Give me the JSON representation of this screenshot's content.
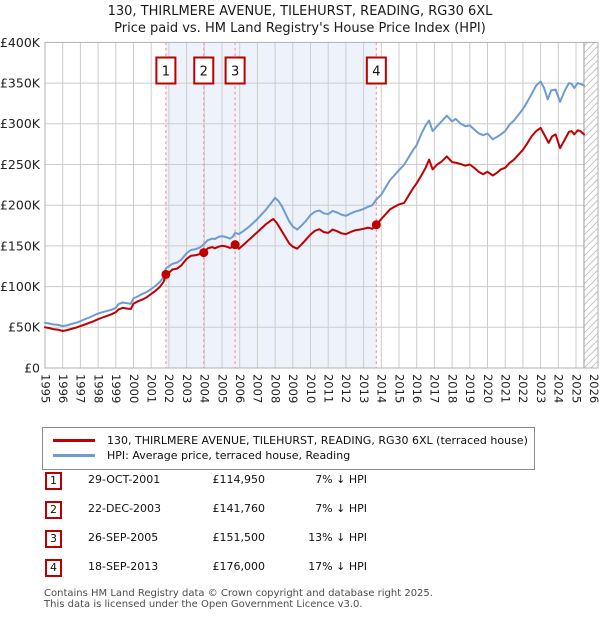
{
  "title": "130, THIRLMERE AVENUE, TILEHURST, READING, RG30 6XL",
  "subtitle": "Price paid vs. HM Land Registry's House Price Index (HPI)",
  "chart_data": {
    "type": "line",
    "title": "130, THIRLMERE AVENUE, TILEHURST, READING, RG30 6XL",
    "subtitle": "Price paid vs. HM Land Registry's House Price Index (HPI)",
    "x_axis": {
      "label": "",
      "range": [
        1995,
        2026.3
      ],
      "ticks": [
        1995,
        1996,
        1997,
        1998,
        1999,
        2000,
        2001,
        2002,
        2003,
        2004,
        2005,
        2006,
        2007,
        2008,
        2009,
        2010,
        2011,
        2012,
        2013,
        2014,
        2015,
        2016,
        2017,
        2018,
        2019,
        2020,
        2021,
        2022,
        2023,
        2024,
        2025,
        2026
      ]
    },
    "y_axis": {
      "label": "",
      "units": "GBP_thousands",
      "range": [
        0,
        400
      ],
      "ticks": [
        0,
        50,
        100,
        150,
        200,
        250,
        300,
        350,
        400
      ],
      "tick_labels": [
        "£0",
        "£50K",
        "£100K",
        "£150K",
        "£200K",
        "£250K",
        "£300K",
        "£350K",
        "£400K"
      ]
    },
    "grid": true,
    "legend_position": "bottom",
    "shaded_period": [
      2001.83,
      2013.72
    ],
    "future_hatch_from": 2025.45,
    "colors": {
      "property_line": "#c00000",
      "hpi_line": "#6e9bd1",
      "grid": "#cccccc",
      "plot_border": "#b0b0b0",
      "sale_dash": "#f59a9a",
      "shade": "#edf2fb",
      "flag_border": "#bb0000",
      "hatch_line": "#c6c6c6",
      "axis_text": "#222222"
    },
    "series": [
      {
        "name": "130, THIRLMERE AVENUE, TILEHURST, READING, RG30 6XL (terraced house)",
        "color": "#c00000",
        "points": [
          [
            1995,
            50
          ],
          [
            1995.25,
            49
          ],
          [
            1995.5,
            47.5
          ],
          [
            1995.75,
            47
          ],
          [
            1996,
            45.5
          ],
          [
            1996.25,
            46.5
          ],
          [
            1996.5,
            48
          ],
          [
            1996.75,
            49.5
          ],
          [
            1997,
            51.5
          ],
          [
            1997.25,
            53.5
          ],
          [
            1997.5,
            55.5
          ],
          [
            1997.75,
            57.5
          ],
          [
            1998,
            60
          ],
          [
            1998.25,
            62
          ],
          [
            1998.5,
            64
          ],
          [
            1998.75,
            66
          ],
          [
            1999,
            68.5
          ],
          [
            1999.15,
            72
          ],
          [
            1999.4,
            74
          ],
          [
            1999.65,
            73
          ],
          [
            1999.85,
            72.5
          ],
          [
            2000,
            79
          ],
          [
            2000.25,
            82
          ],
          [
            2000.5,
            84
          ],
          [
            2000.75,
            87
          ],
          [
            2001,
            91
          ],
          [
            2001.25,
            95
          ],
          [
            2001.5,
            100
          ],
          [
            2001.7,
            106
          ],
          [
            2001.83,
            114.95
          ],
          [
            2002,
            117
          ],
          [
            2002.2,
            121
          ],
          [
            2002.45,
            122
          ],
          [
            2002.7,
            126
          ],
          [
            2003,
            134
          ],
          [
            2003.25,
            138
          ],
          [
            2003.5,
            138.5
          ],
          [
            2003.75,
            140
          ],
          [
            2003.97,
            141.76
          ],
          [
            2004.2,
            147
          ],
          [
            2004.45,
            148.5
          ],
          [
            2004.6,
            147
          ],
          [
            2004.8,
            149
          ],
          [
            2005,
            150
          ],
          [
            2005.2,
            149.5
          ],
          [
            2005.45,
            147.5
          ],
          [
            2005.6,
            148.5
          ],
          [
            2005.74,
            151.5
          ],
          [
            2005.95,
            146.5
          ],
          [
            2006.2,
            151
          ],
          [
            2006.5,
            157
          ],
          [
            2006.75,
            162
          ],
          [
            2007,
            167
          ],
          [
            2007.25,
            172
          ],
          [
            2007.5,
            177
          ],
          [
            2007.75,
            181
          ],
          [
            2007.9,
            183
          ],
          [
            2008.1,
            178
          ],
          [
            2008.3,
            171
          ],
          [
            2008.55,
            162
          ],
          [
            2008.8,
            153
          ],
          [
            2009,
            149
          ],
          [
            2009.25,
            146.5
          ],
          [
            2009.5,
            152
          ],
          [
            2009.75,
            158
          ],
          [
            2010,
            164
          ],
          [
            2010.25,
            168.5
          ],
          [
            2010.5,
            170.5
          ],
          [
            2010.75,
            167
          ],
          [
            2011,
            166
          ],
          [
            2011.25,
            170
          ],
          [
            2011.5,
            168
          ],
          [
            2011.75,
            165.5
          ],
          [
            2012,
            164.5
          ],
          [
            2012.25,
            167
          ],
          [
            2012.5,
            169
          ],
          [
            2012.75,
            170
          ],
          [
            2013,
            171
          ],
          [
            2013.25,
            172.5
          ],
          [
            2013.5,
            171
          ],
          [
            2013.72,
            176
          ],
          [
            2014,
            183
          ],
          [
            2014.25,
            189
          ],
          [
            2014.5,
            195
          ],
          [
            2014.75,
            198
          ],
          [
            2015,
            201
          ],
          [
            2015.3,
            203
          ],
          [
            2015.55,
            212
          ],
          [
            2015.8,
            221
          ],
          [
            2016,
            227
          ],
          [
            2016.25,
            236
          ],
          [
            2016.5,
            246
          ],
          [
            2016.7,
            256
          ],
          [
            2016.9,
            244
          ],
          [
            2017.15,
            250
          ],
          [
            2017.4,
            253.5
          ],
          [
            2017.7,
            260
          ],
          [
            2018,
            253
          ],
          [
            2018.25,
            252
          ],
          [
            2018.5,
            250.5
          ],
          [
            2018.75,
            248.5
          ],
          [
            2019,
            250
          ],
          [
            2019.25,
            246
          ],
          [
            2019.5,
            241
          ],
          [
            2019.75,
            238
          ],
          [
            2020,
            241
          ],
          [
            2020.3,
            236.5
          ],
          [
            2020.55,
            240
          ],
          [
            2020.75,
            244
          ],
          [
            2021,
            246
          ],
          [
            2021.25,
            252
          ],
          [
            2021.5,
            256
          ],
          [
            2021.75,
            262
          ],
          [
            2022,
            268
          ],
          [
            2022.25,
            276
          ],
          [
            2022.5,
            285
          ],
          [
            2022.75,
            291
          ],
          [
            2023,
            295
          ],
          [
            2023.25,
            285
          ],
          [
            2023.45,
            276.5
          ],
          [
            2023.65,
            284.5
          ],
          [
            2023.85,
            287
          ],
          [
            2024.1,
            270
          ],
          [
            2024.35,
            280
          ],
          [
            2024.6,
            290
          ],
          [
            2024.75,
            291
          ],
          [
            2024.9,
            287
          ],
          [
            2025.1,
            292
          ],
          [
            2025.25,
            291
          ],
          [
            2025.45,
            287
          ]
        ]
      },
      {
        "name": "HPI: Average price, terraced house, Reading",
        "color": "#6e9bd1",
        "points": [
          [
            1995,
            55.5
          ],
          [
            1995.25,
            54.5
          ],
          [
            1995.5,
            53.5
          ],
          [
            1995.75,
            53
          ],
          [
            1996,
            51.5
          ],
          [
            1996.25,
            52.5
          ],
          [
            1996.5,
            54
          ],
          [
            1996.75,
            55.5
          ],
          [
            1997,
            57.5
          ],
          [
            1997.25,
            60
          ],
          [
            1997.5,
            62
          ],
          [
            1997.75,
            64.5
          ],
          [
            1998,
            67
          ],
          [
            1998.25,
            68.5
          ],
          [
            1998.5,
            70
          ],
          [
            1998.75,
            71.5
          ],
          [
            1999,
            74
          ],
          [
            1999.15,
            78.5
          ],
          [
            1999.4,
            80.5
          ],
          [
            1999.65,
            79.5
          ],
          [
            1999.85,
            79
          ],
          [
            2000,
            85.5
          ],
          [
            2000.25,
            88
          ],
          [
            2000.5,
            91
          ],
          [
            2000.75,
            93.5
          ],
          [
            2001,
            97
          ],
          [
            2001.25,
            101
          ],
          [
            2001.5,
            106
          ],
          [
            2001.7,
            112
          ],
          [
            2001.83,
            122.5
          ],
          [
            2002,
            125
          ],
          [
            2002.2,
            128
          ],
          [
            2002.45,
            129.5
          ],
          [
            2002.7,
            133
          ],
          [
            2003,
            141
          ],
          [
            2003.25,
            145
          ],
          [
            2003.5,
            146
          ],
          [
            2003.75,
            148
          ],
          [
            2003.97,
            152
          ],
          [
            2004.2,
            157
          ],
          [
            2004.45,
            159
          ],
          [
            2004.6,
            158.5
          ],
          [
            2004.8,
            161
          ],
          [
            2005,
            162
          ],
          [
            2005.2,
            161
          ],
          [
            2005.45,
            159
          ],
          [
            2005.6,
            161
          ],
          [
            2005.74,
            166
          ],
          [
            2005.95,
            164.5
          ],
          [
            2006.2,
            168
          ],
          [
            2006.5,
            173
          ],
          [
            2006.75,
            178
          ],
          [
            2007,
            183
          ],
          [
            2007.25,
            189
          ],
          [
            2007.5,
            195
          ],
          [
            2007.75,
            202
          ],
          [
            2008,
            209
          ],
          [
            2008.2,
            205
          ],
          [
            2008.4,
            198
          ],
          [
            2008.6,
            189
          ],
          [
            2008.8,
            180
          ],
          [
            2009,
            174
          ],
          [
            2009.25,
            170
          ],
          [
            2009.5,
            175
          ],
          [
            2009.75,
            181
          ],
          [
            2010,
            188
          ],
          [
            2010.25,
            192
          ],
          [
            2010.5,
            193.5
          ],
          [
            2010.75,
            190
          ],
          [
            2011,
            189
          ],
          [
            2011.25,
            193
          ],
          [
            2011.5,
            191
          ],
          [
            2011.75,
            188.5
          ],
          [
            2012,
            187
          ],
          [
            2012.25,
            189.5
          ],
          [
            2012.5,
            192
          ],
          [
            2012.75,
            193.5
          ],
          [
            2013,
            195.5
          ],
          [
            2013.25,
            198
          ],
          [
            2013.5,
            200
          ],
          [
            2013.72,
            207
          ],
          [
            2014,
            213
          ],
          [
            2014.25,
            222
          ],
          [
            2014.5,
            231
          ],
          [
            2014.75,
            237
          ],
          [
            2015,
            243
          ],
          [
            2015.3,
            250
          ],
          [
            2015.55,
            259
          ],
          [
            2015.8,
            268
          ],
          [
            2016,
            274
          ],
          [
            2016.25,
            287
          ],
          [
            2016.5,
            298
          ],
          [
            2016.7,
            304
          ],
          [
            2016.9,
            291
          ],
          [
            2017.15,
            297
          ],
          [
            2017.4,
            303
          ],
          [
            2017.7,
            310
          ],
          [
            2018,
            303
          ],
          [
            2018.2,
            306
          ],
          [
            2018.5,
            300
          ],
          [
            2018.75,
            297
          ],
          [
            2019,
            298
          ],
          [
            2019.25,
            293
          ],
          [
            2019.5,
            288.5
          ],
          [
            2019.75,
            286
          ],
          [
            2020,
            288
          ],
          [
            2020.3,
            281
          ],
          [
            2020.55,
            284
          ],
          [
            2020.75,
            287
          ],
          [
            2021,
            291
          ],
          [
            2021.25,
            299
          ],
          [
            2021.5,
            304
          ],
          [
            2021.75,
            311
          ],
          [
            2022,
            318
          ],
          [
            2022.25,
            327
          ],
          [
            2022.5,
            337
          ],
          [
            2022.75,
            347
          ],
          [
            2023,
            352
          ],
          [
            2023.2,
            344
          ],
          [
            2023.4,
            330
          ],
          [
            2023.6,
            341
          ],
          [
            2023.85,
            342
          ],
          [
            2024.1,
            327
          ],
          [
            2024.35,
            340
          ],
          [
            2024.6,
            350
          ],
          [
            2024.75,
            349
          ],
          [
            2024.9,
            344
          ],
          [
            2025.1,
            350
          ],
          [
            2025.25,
            349
          ],
          [
            2025.45,
            347
          ]
        ]
      }
    ],
    "sales": [
      {
        "label": "1",
        "date": "29-OCT-2001",
        "price": "£114,950",
        "price_k": 114.95,
        "year": 2001.83,
        "hpi_delta": "7% ↓ HPI"
      },
      {
        "label": "2",
        "date": "22-DEC-2003",
        "price": "£141,760",
        "price_k": 141.76,
        "year": 2003.97,
        "hpi_delta": "7% ↓ HPI"
      },
      {
        "label": "3",
        "date": "26-SEP-2005",
        "price": "£151,500",
        "price_k": 151.5,
        "year": 2005.74,
        "hpi_delta": "13% ↓ HPI"
      },
      {
        "label": "4",
        "date": "18-SEP-2013",
        "price": "£176,000",
        "price_k": 176.0,
        "year": 2013.72,
        "hpi_delta": "17% ↓ HPI"
      }
    ]
  },
  "legend": {
    "items": [
      {
        "color": "#c00000",
        "label": "130, THIRLMERE AVENUE, TILEHURST, READING, RG30 6XL (terraced house)"
      },
      {
        "color": "#6e9bd1",
        "label": "HPI: Average price, terraced house, Reading"
      }
    ]
  },
  "footer": {
    "line1": "Contains HM Land Registry data © Crown copyright and database right 2025.",
    "line2": "This data is licensed under the Open Government Licence v3.0."
  }
}
